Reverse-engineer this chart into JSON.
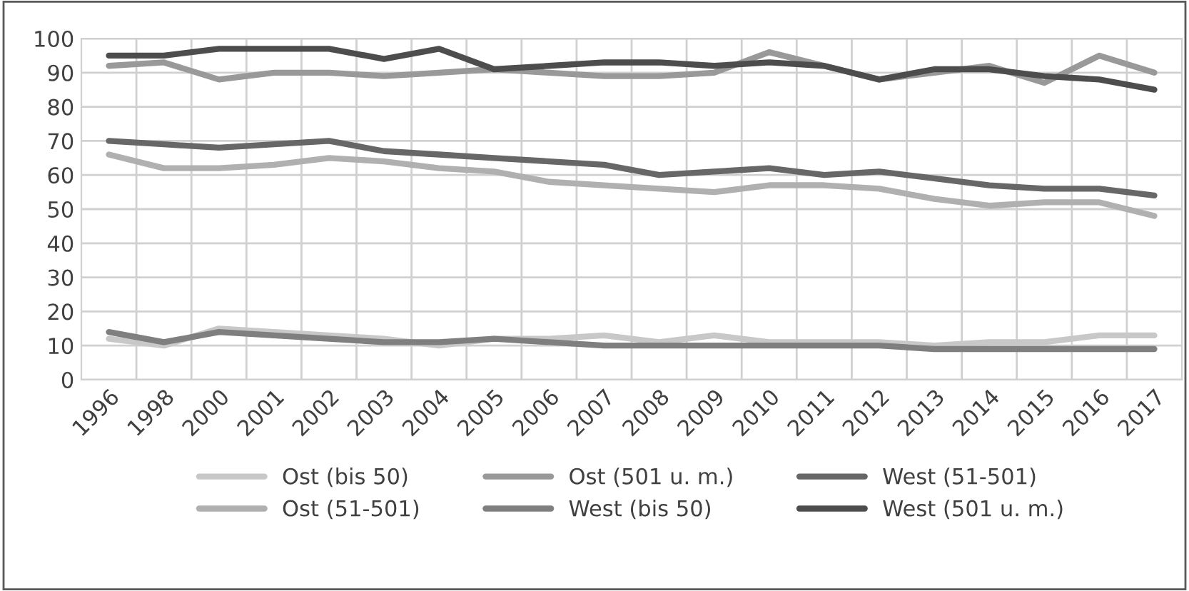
{
  "chart_data": {
    "type": "line",
    "categories": [
      "1996",
      "1998",
      "2000",
      "2001",
      "2002",
      "2003",
      "2004",
      "2005",
      "2006",
      "2007",
      "2008",
      "2009",
      "2010",
      "2011",
      "2012",
      "2013",
      "2014",
      "2015",
      "2016",
      "2017"
    ],
    "ylim": [
      0,
      100
    ],
    "yticks": [
      0,
      10,
      20,
      30,
      40,
      50,
      60,
      70,
      80,
      90,
      100
    ],
    "grid": true,
    "legend": "bottom",
    "marker": "none",
    "line_style": "solid",
    "series": [
      {
        "name": "Ost (bis 50)",
        "color": "#c8c8c8",
        "values": [
          12,
          10,
          15,
          14,
          13,
          12,
          10,
          12,
          12,
          13,
          11,
          13,
          11,
          11,
          11,
          10,
          11,
          11,
          13,
          13
        ]
      },
      {
        "name": "Ost (51-501)",
        "color": "#b0b0b0",
        "values": [
          66,
          62,
          62,
          63,
          65,
          64,
          62,
          61,
          58,
          57,
          56,
          55,
          57,
          57,
          56,
          53,
          51,
          52,
          52,
          48
        ]
      },
      {
        "name": "Ost (501 u. m.)",
        "color": "#999999",
        "values": [
          92,
          93,
          88,
          90,
          90,
          89,
          90,
          91,
          90,
          89,
          89,
          90,
          96,
          92,
          88,
          90,
          92,
          87,
          95,
          90
        ]
      },
      {
        "name": "West (bis 50)",
        "color": "#7f7f7f",
        "values": [
          14,
          11,
          14,
          13,
          12,
          11,
          11,
          12,
          11,
          10,
          10,
          10,
          10,
          10,
          10,
          9,
          9,
          9,
          9,
          9
        ]
      },
      {
        "name": "West (51-501)",
        "color": "#676767",
        "values": [
          70,
          69,
          68,
          69,
          70,
          67,
          66,
          65,
          64,
          63,
          60,
          61,
          62,
          60,
          61,
          59,
          57,
          56,
          56,
          54
        ]
      },
      {
        "name": "West (501 u. m.)",
        "color": "#4d4d4d",
        "values": [
          95,
          95,
          97,
          97,
          97,
          94,
          97,
          91,
          92,
          93,
          93,
          92,
          93,
          92,
          88,
          91,
          91,
          89,
          88,
          85
        ]
      }
    ]
  }
}
